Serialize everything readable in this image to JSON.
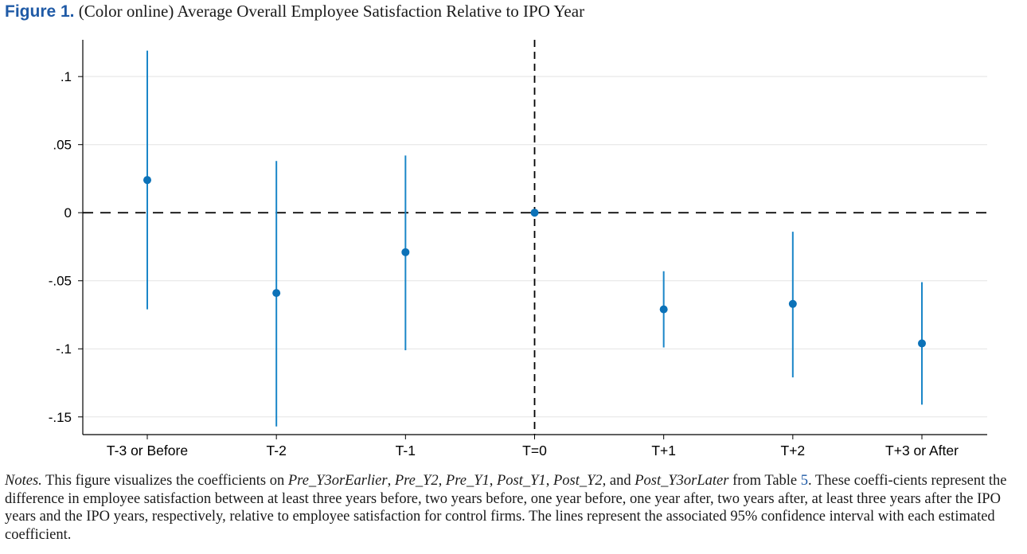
{
  "figure": {
    "label": "Figure 1.",
    "title": "(Color online) Average Overall Employee Satisfaction Relative to IPO Year"
  },
  "notes": {
    "lead": "Notes.",
    "part1": " This figure visualizes the coefficients on ",
    "vars": [
      "Pre_Y3orEarlier",
      "Pre_Y2",
      "Pre_Y1",
      "Post_Y1",
      "Post_Y2",
      "Post_Y3orLater"
    ],
    "sep": ", ",
    "and": ", and ",
    "part2": " from Table ",
    "table": "5",
    "part3": ". These coeffi-cients represent the difference in employee satisfaction between at least three years before, two years before, one year before, one year after, two years after, at least three years after the IPO years and the IPO years, respectively, relative to employee satisfaction for control firms. The lines represent the associated 95% confidence interval with each estimated coefficient."
  },
  "chart_data": {
    "type": "scatter",
    "categories": [
      "T-3 or Before",
      "T-2",
      "T-1",
      "T=0",
      "T+1",
      "T+2",
      "T+3 or After"
    ],
    "values": [
      0.024,
      -0.059,
      -0.029,
      0.0,
      -0.071,
      -0.067,
      -0.096
    ],
    "ci_low": [
      -0.071,
      -0.157,
      -0.101,
      0.0,
      -0.099,
      -0.121,
      -0.141
    ],
    "ci_high": [
      0.119,
      0.038,
      0.042,
      0.0,
      -0.043,
      -0.014,
      -0.051
    ],
    "yticks": [
      0.1,
      0.05,
      0,
      -0.05,
      -0.1,
      -0.15
    ],
    "ytick_labels": [
      ".1",
      ".05",
      "0",
      "-.05",
      "-.1",
      "-.15"
    ],
    "ylim": [
      -0.163,
      0.127
    ],
    "reference_lines": {
      "y": 0,
      "x_category": "T=0",
      "style": "dashed"
    },
    "grid": true,
    "colors": {
      "marker": "#0c72b8",
      "ci": "#1a86c8",
      "grid": "#e3e3e3",
      "axis": "#000000"
    }
  }
}
